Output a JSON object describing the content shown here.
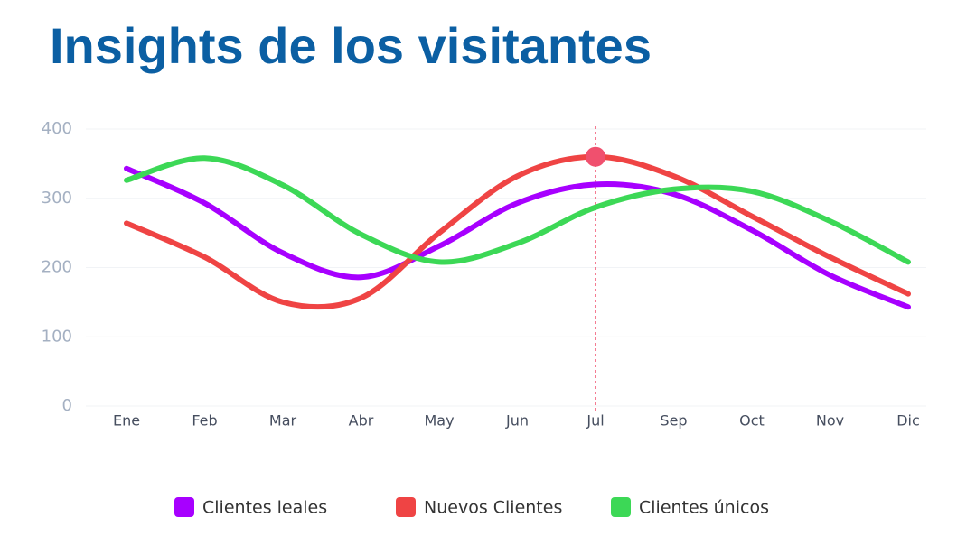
{
  "chart_data": {
    "type": "line",
    "title": "Insights de los visitantes",
    "categories": [
      "Ene",
      "Feb",
      "Mar",
      "Abr",
      "May",
      "Jun",
      "Jul",
      "Sep",
      "Oct",
      "Nov",
      "Dic"
    ],
    "series": [
      {
        "name": "Clientes leales",
        "color": "#a700ff",
        "values": [
          343,
          293,
          221,
          186,
          231,
          293,
          320,
          306,
          254,
          189,
          143
        ]
      },
      {
        "name": "Nuevos Clientes",
        "color": "#ef4444",
        "values": [
          264,
          215,
          150,
          156,
          250,
          332,
          360,
          332,
          274,
          215,
          162
        ]
      },
      {
        "name": "Clientes únicos",
        "color": "#3cd856",
        "values": [
          326,
          358,
          319,
          248,
          208,
          235,
          287,
          313,
          310,
          267,
          208
        ]
      }
    ],
    "ylim": [
      0,
      400
    ],
    "yticks": [
      0,
      100,
      200,
      300,
      400
    ],
    "grid": true
  }
}
